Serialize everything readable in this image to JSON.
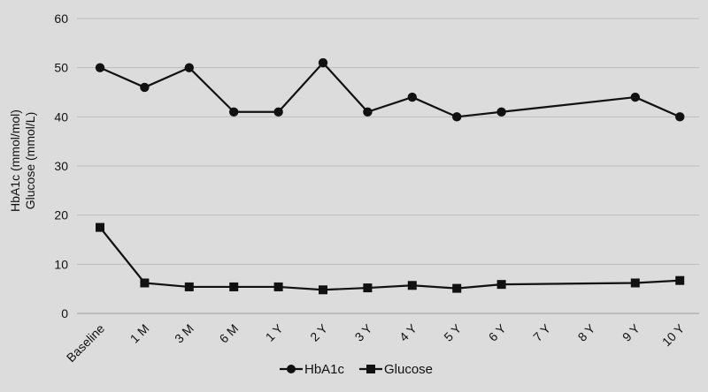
{
  "chart_data": {
    "type": "line",
    "title": "",
    "xlabel": "",
    "ylabel_lines": [
      "HbA1c (mmol/mol)",
      "Glucose (mmol/L)"
    ],
    "ylim": [
      0,
      60
    ],
    "yticks": [
      0,
      10,
      20,
      30,
      40,
      50,
      60
    ],
    "grid": true,
    "legend_position": "bottom",
    "categories": [
      "Baseline",
      "1 M",
      "3 M",
      "6 M",
      "1 Y",
      "2 Y",
      "3 Y",
      "4 Y",
      "5 Y",
      "6 Y",
      "7 Y",
      "8 Y",
      "9 Y",
      "10 Y"
    ],
    "series": [
      {
        "name": "HbA1c",
        "marker": "circle",
        "color": "#111111",
        "values": [
          50,
          46,
          50,
          41,
          41,
          51,
          41,
          44,
          40,
          41,
          null,
          null,
          44,
          40
        ]
      },
      {
        "name": "Glucose",
        "marker": "square",
        "color": "#111111",
        "values": [
          17.5,
          6.2,
          5.4,
          5.4,
          5.4,
          4.8,
          5.2,
          5.7,
          5.1,
          5.9,
          null,
          null,
          6.2,
          6.7
        ]
      }
    ]
  }
}
